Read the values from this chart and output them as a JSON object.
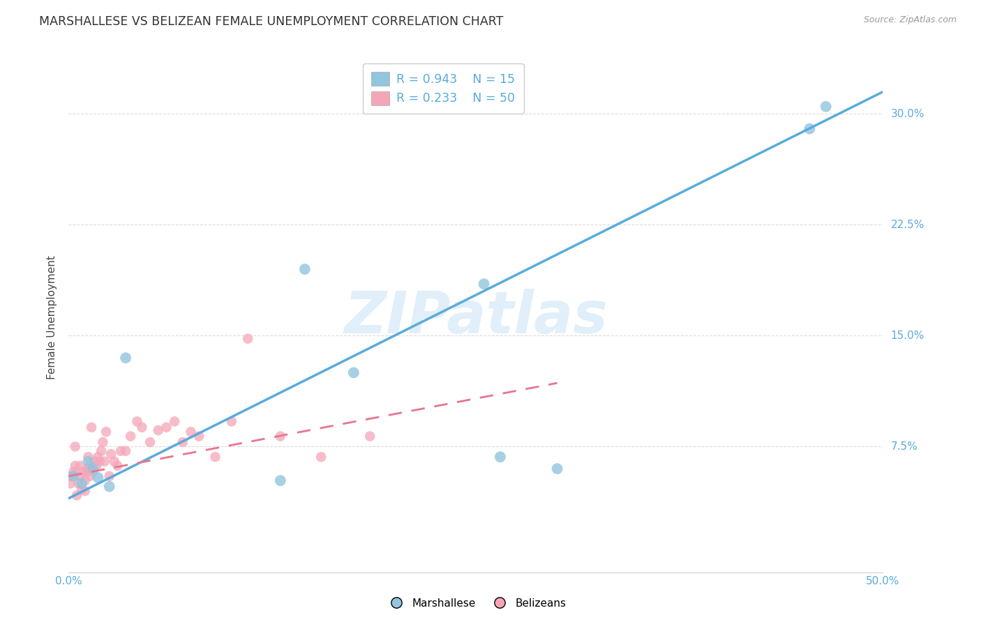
{
  "title": "MARSHALLESE VS BELIZEAN FEMALE UNEMPLOYMENT CORRELATION CHART",
  "source": "Source: ZipAtlas.com",
  "ylabel": "Female Unemployment",
  "xlim": [
    0.0,
    0.5
  ],
  "ylim": [
    -0.01,
    0.335
  ],
  "yticks": [
    0.075,
    0.15,
    0.225,
    0.3
  ],
  "ytick_labels": [
    "7.5%",
    "15.0%",
    "22.5%",
    "30.0%"
  ],
  "xticks": [
    0.0,
    0.1,
    0.2,
    0.3,
    0.4,
    0.5
  ],
  "xtick_labels": [
    "0.0%",
    "",
    "",
    "",
    "",
    "50.0%"
  ],
  "watermark": "ZIPatlas",
  "legend_R1": "R = 0.943",
  "legend_N1": "N = 15",
  "legend_R2": "R = 0.233",
  "legend_N2": "N = 50",
  "blue_color": "#92c5de",
  "blue_line_color": "#5aabdb",
  "pink_color": "#f4a6b8",
  "pink_line_color": "#e8758f",
  "blue_scatter_x": [
    0.003,
    0.008,
    0.012,
    0.015,
    0.018,
    0.025,
    0.035,
    0.13,
    0.145,
    0.175,
    0.255,
    0.265,
    0.3,
    0.455,
    0.465
  ],
  "blue_scatter_y": [
    0.055,
    0.05,
    0.065,
    0.06,
    0.054,
    0.048,
    0.135,
    0.052,
    0.195,
    0.125,
    0.185,
    0.068,
    0.06,
    0.29,
    0.305
  ],
  "pink_scatter_x": [
    0.001,
    0.002,
    0.003,
    0.004,
    0.004,
    0.005,
    0.006,
    0.007,
    0.007,
    0.008,
    0.009,
    0.01,
    0.01,
    0.011,
    0.012,
    0.012,
    0.013,
    0.013,
    0.014,
    0.015,
    0.016,
    0.017,
    0.018,
    0.019,
    0.02,
    0.021,
    0.022,
    0.023,
    0.025,
    0.026,
    0.028,
    0.03,
    0.032,
    0.035,
    0.038,
    0.042,
    0.045,
    0.05,
    0.055,
    0.06,
    0.065,
    0.07,
    0.075,
    0.08,
    0.09,
    0.1,
    0.11,
    0.13,
    0.155,
    0.185
  ],
  "pink_scatter_y": [
    0.05,
    0.055,
    0.058,
    0.062,
    0.075,
    0.042,
    0.05,
    0.055,
    0.062,
    0.046,
    0.058,
    0.045,
    0.052,
    0.058,
    0.06,
    0.068,
    0.055,
    0.062,
    0.088,
    0.058,
    0.065,
    0.062,
    0.068,
    0.065,
    0.072,
    0.078,
    0.065,
    0.085,
    0.055,
    0.07,
    0.065,
    0.062,
    0.072,
    0.072,
    0.082,
    0.092,
    0.088,
    0.078,
    0.086,
    0.088,
    0.092,
    0.078,
    0.085,
    0.082,
    0.068,
    0.092,
    0.148,
    0.082,
    0.068,
    0.082
  ],
  "background_color": "#ffffff",
  "grid_color": "#d8d8d8",
  "title_fontsize": 12.5,
  "label_fontsize": 11,
  "tick_fontsize": 11,
  "watermark_fontsize": 60,
  "watermark_color": "#cce5f5",
  "watermark_alpha": 0.6,
  "blue_line_x": [
    0.0,
    0.5
  ],
  "blue_line_y": [
    0.04,
    0.315
  ],
  "pink_line_x": [
    0.0,
    0.3
  ],
  "pink_line_y": [
    0.055,
    0.118
  ]
}
